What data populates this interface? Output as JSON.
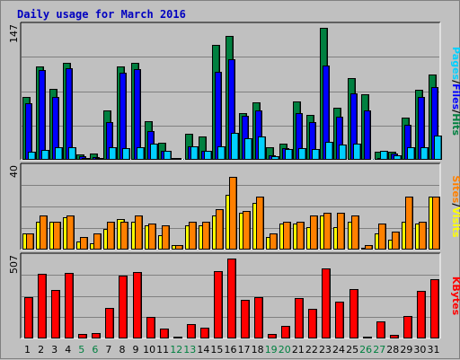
{
  "title": "Daily usage for March 2016",
  "colors": {
    "pages": "#00d0ff",
    "files": "#0000ff",
    "hits": "#008040",
    "sites": "#ff8000",
    "visits": "#ffff00",
    "kbytes": "#ff0000",
    "weekday_label": "#000000",
    "weekend_label": "#008040",
    "panel_bg": "#c0c0c0"
  },
  "chart_data": {
    "type": "bar",
    "days": [
      "1",
      "2",
      "3",
      "4",
      "5",
      "6",
      "7",
      "8",
      "9",
      "10",
      "11",
      "12",
      "13",
      "14",
      "15",
      "16",
      "17",
      "18",
      "19",
      "20",
      "21",
      "22",
      "23",
      "24",
      "25",
      "26",
      "27",
      "28",
      "29",
      "30",
      "31"
    ],
    "weekend_days": [
      "5",
      "6",
      "12",
      "13",
      "19",
      "20",
      "26",
      "27"
    ],
    "panels": [
      {
        "id": "hits_files_pages",
        "ymax_label": "147",
        "ymax": 147,
        "legend": [
          "Pages",
          "Files",
          "Hits"
        ],
        "series": [
          {
            "name": "Hits",
            "values": [
              70,
              104,
              79,
              108,
              6,
              7,
              55,
              104,
              108,
              43,
              19,
              2,
              29,
              26,
              128,
              138,
              52,
              64,
              14,
              18,
              65,
              50,
              147,
              58,
              91,
              73,
              9,
              9,
              47,
              78,
              95
            ]
          },
          {
            "name": "Files",
            "values": [
              63,
              100,
              70,
              102,
              4,
              3,
              42,
              97,
              101,
              32,
              10,
              2,
              15,
              10,
              98,
              112,
              49,
              55,
              5,
              13,
              52,
              42,
              105,
              48,
              74,
              55,
              2,
              7,
              39,
              70,
              81
            ]
          },
          {
            "name": "Pages",
            "values": [
              9,
              11,
              14,
              14,
              2,
              2,
              14,
              13,
              14,
              18,
              10,
              1,
              15,
              10,
              15,
              30,
              24,
              26,
              4,
              12,
              13,
              12,
              20,
              17,
              18,
              1,
              10,
              5,
              14,
              14,
              27
            ]
          }
        ]
      },
      {
        "id": "visits_sites",
        "ymax_label": "40",
        "ymax": 40,
        "legend": [
          "Sites",
          "Visits"
        ],
        "series": [
          {
            "name": "Visits",
            "values": [
              8,
              14,
              14,
              16,
              4,
              3,
              10,
              15,
              14,
              12,
              7,
              2,
              12,
              12,
              17,
              27,
              18,
              23,
              6,
              13,
              13,
              11,
              17,
              11,
              14,
              1,
              8,
              5,
              14,
              13,
              26
            ]
          },
          {
            "name": "Sites",
            "values": [
              8,
              17,
              14,
              17,
              6,
              8,
              14,
              14,
              17,
              13,
              12,
              2,
              14,
              14,
              20,
              36,
              19,
              26,
              8,
              14,
              14,
              17,
              18,
              18,
              17,
              2,
              13,
              9,
              26,
              14,
              26
            ]
          }
        ]
      },
      {
        "id": "kbytes",
        "ymax_label": "507",
        "ymax": 507,
        "legend": [
          "KBytes"
        ],
        "series": [
          {
            "name": "KBytes",
            "values": [
              262,
              412,
              305,
              416,
              30,
              33,
              196,
              398,
              421,
              139,
              65,
              12,
              89,
              66,
              430,
              507,
              244,
              264,
              30,
              79,
              257,
              190,
              445,
              234,
              315,
              12,
              107,
              23,
              143,
              303,
              378
            ]
          }
        ]
      }
    ]
  }
}
